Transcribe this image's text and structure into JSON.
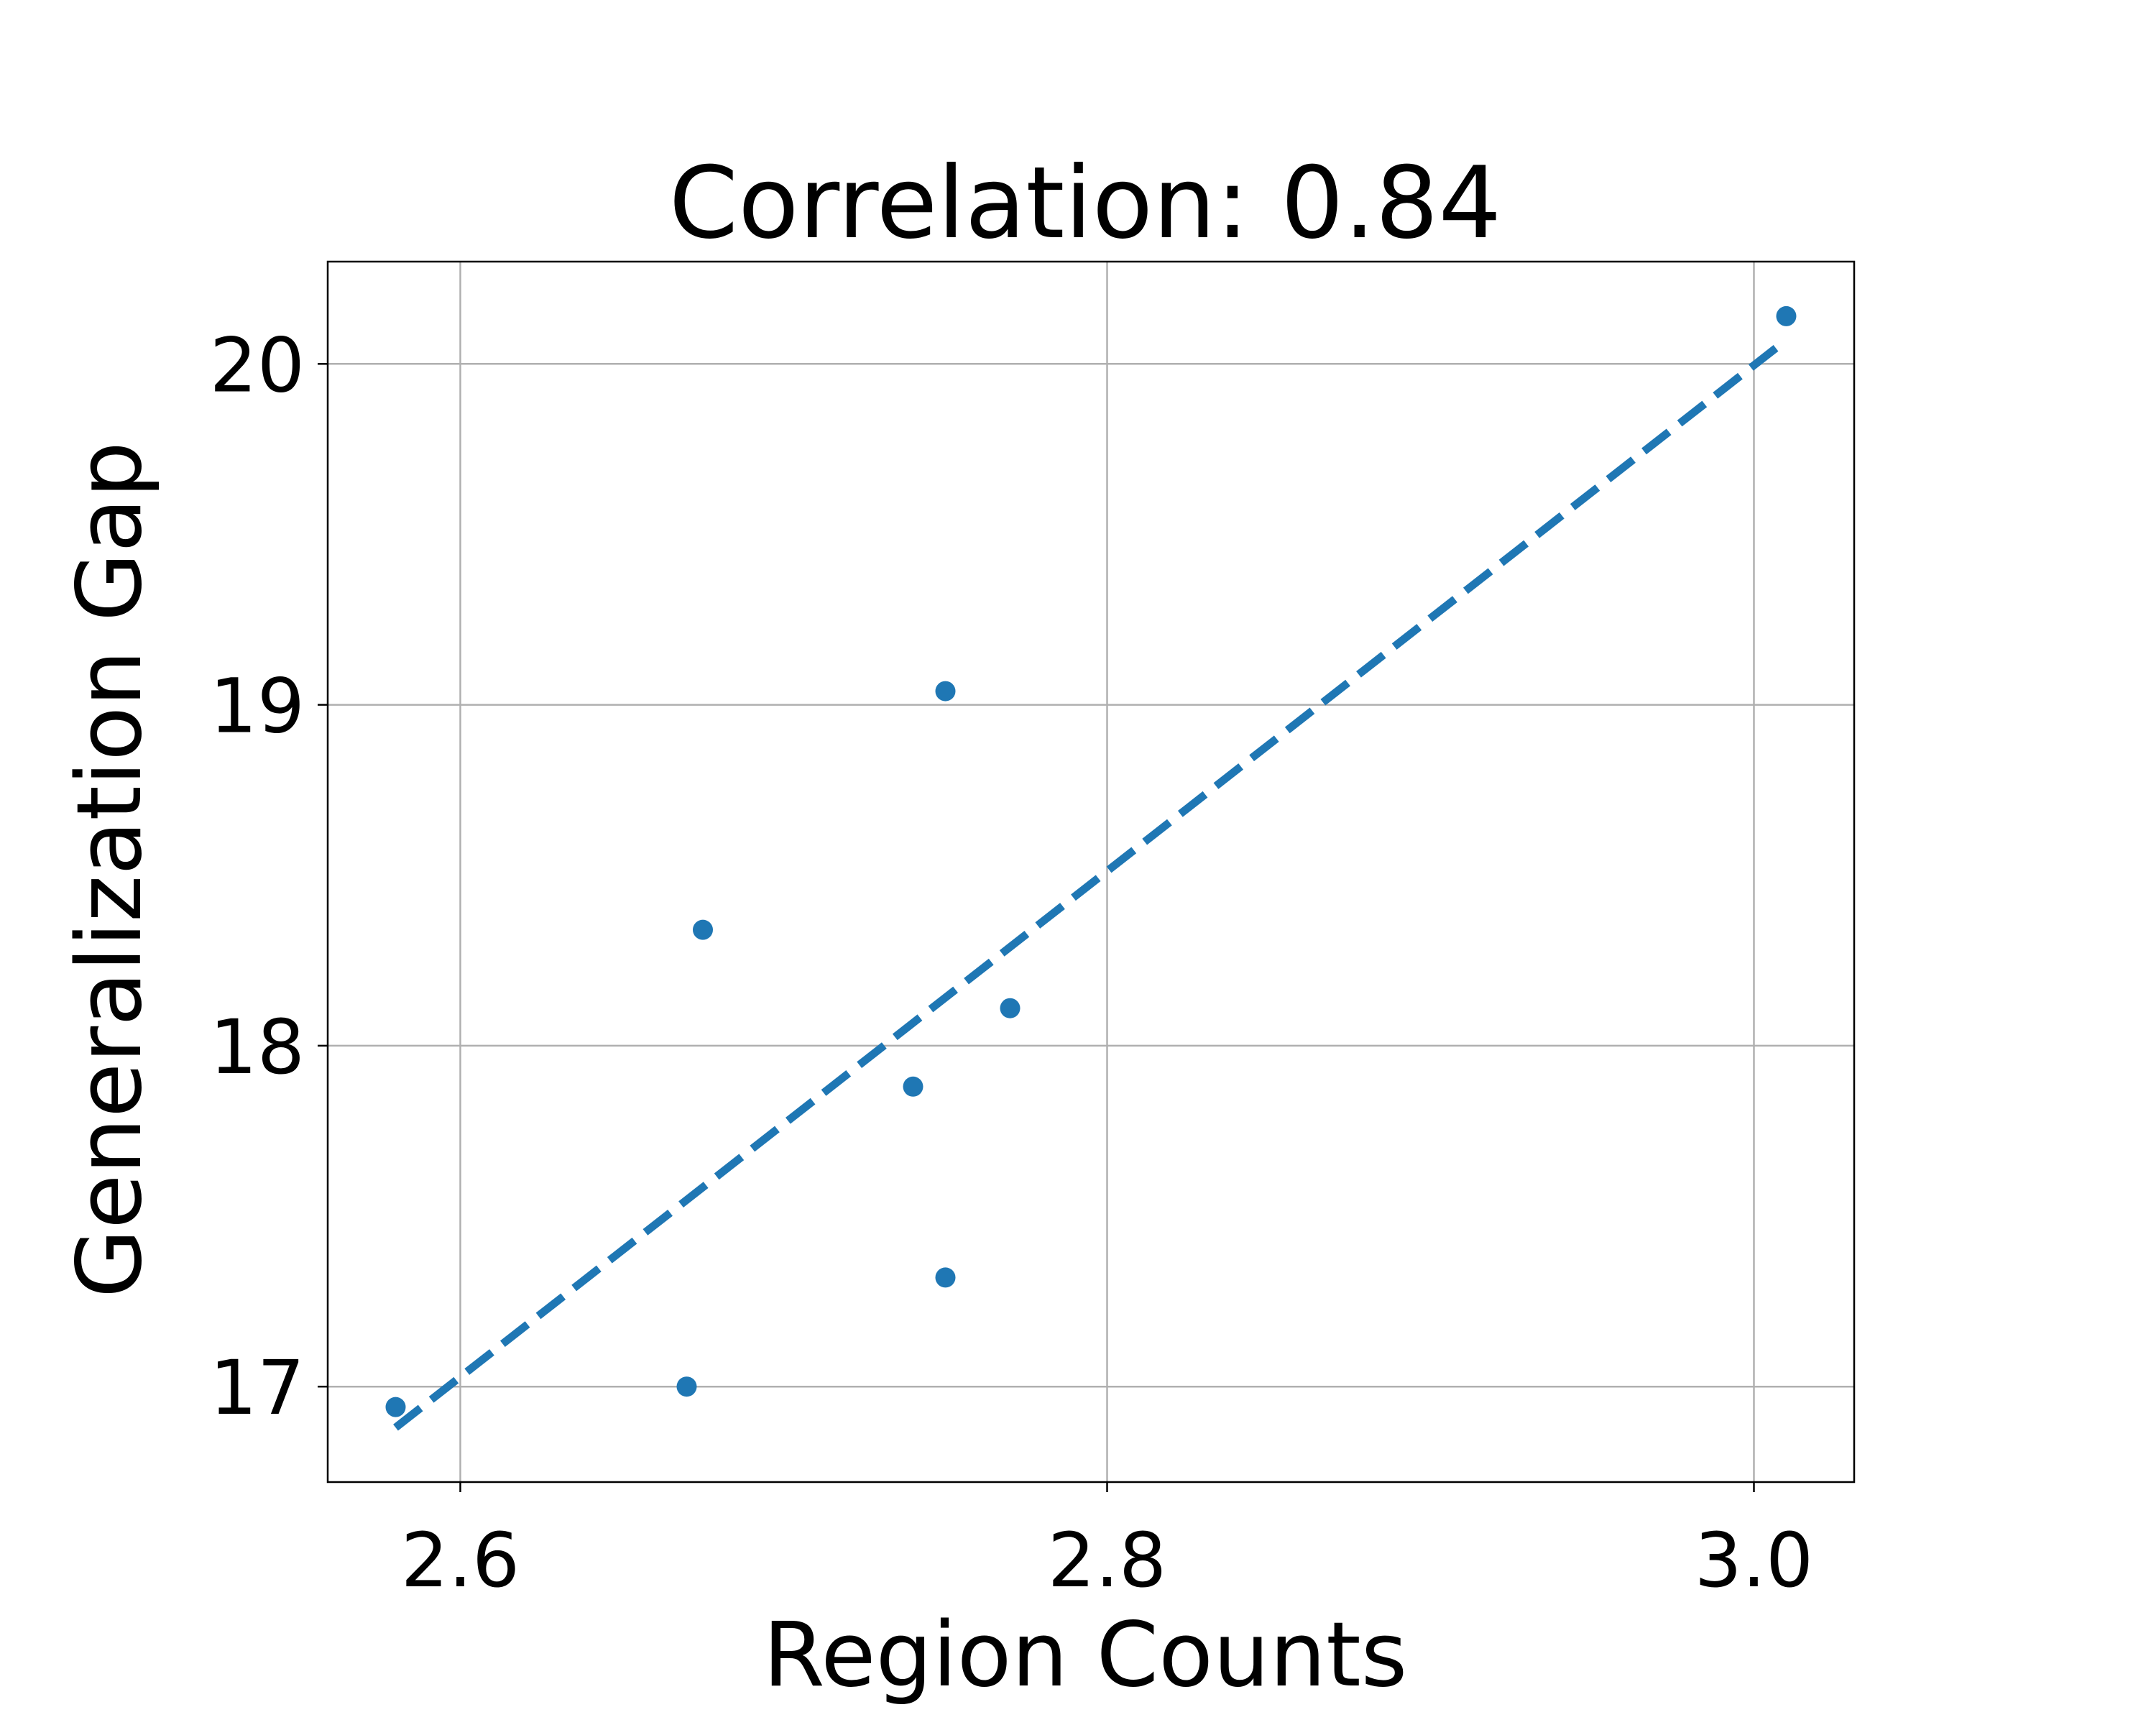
{
  "chart_data": {
    "type": "scatter",
    "title": "Correlation: 0.84",
    "xlabel": "Region Counts",
    "ylabel": "Generalization Gap",
    "xlim": [
      2.559,
      3.031
    ],
    "ylim": [
      16.72,
      20.3
    ],
    "xticks": [
      {
        "value": 2.6,
        "label": "2.6"
      },
      {
        "value": 2.8,
        "label": "2.8"
      },
      {
        "value": 3.0,
        "label": "3.0"
      }
    ],
    "yticks": [
      {
        "value": 17,
        "label": "17"
      },
      {
        "value": 18,
        "label": "18"
      },
      {
        "value": 19,
        "label": "19"
      },
      {
        "value": 20,
        "label": "20"
      }
    ],
    "grid": true,
    "series": [
      {
        "points": [
          {
            "x": 2.58,
            "y": 16.94
          },
          {
            "x": 2.67,
            "y": 17.0
          },
          {
            "x": 2.675,
            "y": 18.34
          },
          {
            "x": 2.74,
            "y": 17.88
          },
          {
            "x": 2.75,
            "y": 19.04
          },
          {
            "x": 2.75,
            "y": 17.32
          },
          {
            "x": 2.77,
            "y": 18.11
          },
          {
            "x": 3.01,
            "y": 20.14
          }
        ]
      }
    ],
    "trendline": {
      "style": "dashed",
      "from": {
        "x": 2.58,
        "y": 16.88
      },
      "to": {
        "x": 3.01,
        "y": 20.07
      }
    },
    "colors": {
      "points": "#1f77b4",
      "trendline": "#1f77b4",
      "grid": "#b0b0b0",
      "axes": "#000000"
    }
  }
}
